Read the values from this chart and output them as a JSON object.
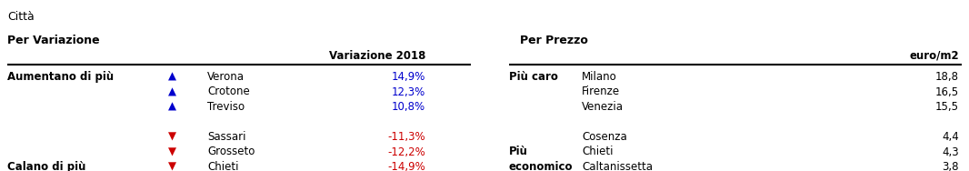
{
  "title": "Città",
  "left_section_title": "Per Variazione",
  "right_section_title": "Per Prezzo",
  "left_col_header": "Variazione 2018",
  "right_col_header": "euro/m2",
  "left_rows": [
    {
      "label": "Aumentano di più",
      "arrow": "up",
      "city": "Verona",
      "value": "14,9%",
      "bold_label": true
    },
    {
      "label": "",
      "arrow": "up",
      "city": "Crotone",
      "value": "12,3%",
      "bold_label": false
    },
    {
      "label": "",
      "arrow": "up",
      "city": "Treviso",
      "value": "10,8%",
      "bold_label": false
    },
    {
      "label": "",
      "arrow": "",
      "city": "",
      "value": "",
      "bold_label": false
    },
    {
      "label": "",
      "arrow": "dn",
      "city": "Sassari",
      "value": "-11,3%",
      "bold_label": false
    },
    {
      "label": "",
      "arrow": "dn",
      "city": "Grosseto",
      "value": "-12,2%",
      "bold_label": false
    },
    {
      "label": "Calano di più",
      "arrow": "dn",
      "city": "Chieti",
      "value": "-14,9%",
      "bold_label": true
    }
  ],
  "right_rows": [
    {
      "label": "Più caro",
      "label2": "",
      "city": "Milano",
      "value": "18,8"
    },
    {
      "label": "",
      "label2": "",
      "city": "Firenze",
      "value": "16,5"
    },
    {
      "label": "",
      "label2": "",
      "city": "Venezia",
      "value": "15,5"
    },
    {
      "label": "",
      "label2": "",
      "city": "",
      "value": ""
    },
    {
      "label": "",
      "label2": "",
      "city": "Cosenza",
      "value": "4,4"
    },
    {
      "label": "Più",
      "label2": "",
      "city": "Chieti",
      "value": "4,3"
    },
    {
      "label": "economico",
      "label2": "",
      "city": "Caltanissetta",
      "value": "3,8"
    }
  ],
  "bg_color": "#ffffff",
  "text_color": "#000000",
  "blue_color": "#0000cd",
  "red_color": "#cc0000",
  "font_size": 8.5,
  "title_font_size": 9,
  "section_title_font_size": 9
}
